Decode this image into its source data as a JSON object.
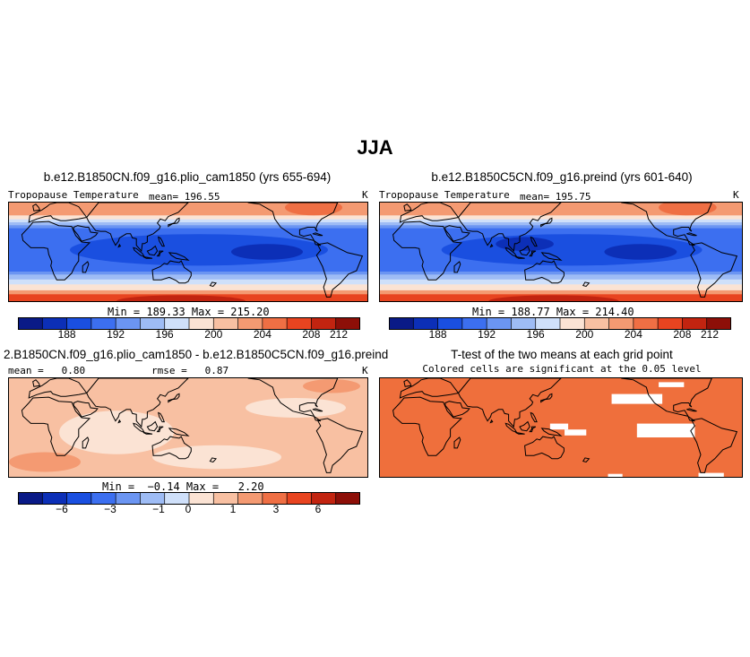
{
  "figure": {
    "title": "JJA"
  },
  "panels": {
    "p1": {
      "title": "b.e12.B1850CN.f09_g16.plio_cam1850 (yrs 655-694)",
      "variable": "Tropopause Temperature",
      "mean_label": "mean= 196.55",
      "units": "K",
      "minmax": "Min = 189.33 Max = 215.20"
    },
    "p2": {
      "title": "b.e12.B1850C5CN.f09_g16.preind (yrs 601-640)",
      "variable": "Tropopause Temperature",
      "mean_label": "mean= 195.75",
      "units": "K",
      "minmax": "Min = 188.77 Max = 214.40"
    },
    "p3": {
      "title": "2.B1850CN.f09_g16.plio_cam1850 - b.e12.B1850C5CN.f09_g16.preind",
      "mean_label": "mean =   0.80",
      "rmse_label": "rmse =   0.87",
      "units": "K",
      "minmax": "Min =  −0.14 Max =   2.20"
    },
    "p4": {
      "title": "T-test of the two means at each grid point",
      "subtitle": "Colored cells are significant at the 0.05 level"
    }
  },
  "colors": {
    "abs_scale": [
      "#0a1a87",
      "#0c2fb7",
      "#1a4fe0",
      "#3c6ff0",
      "#6b95f2",
      "#9ebcf5",
      "#cfe0fa",
      "#fbe3d4",
      "#f8c0a2",
      "#f49a72",
      "#ef6f44",
      "#e84420",
      "#c22410",
      "#8d0f08"
    ],
    "diff_scale": [
      "#0a1a87",
      "#0c2fb7",
      "#1a4fe0",
      "#3c6ff0",
      "#6b95f2",
      "#9ebcf5",
      "#cfe0fa",
      "#fbe3d4",
      "#f8c0a2",
      "#f49a72",
      "#ef6f44",
      "#e84420",
      "#c22410",
      "#8d0f08"
    ],
    "significance": "#ef6f3c",
    "land_outline": "#000000"
  },
  "chart_data": [
    {
      "type": "heatmap",
      "title": "b.e12.B1850CN.f09_g16.plio_cam1850 (yrs 655-694)",
      "variable": "Tropopause Temperature",
      "units": "K",
      "mean": 196.55,
      "min": 189.33,
      "max": 215.2,
      "colorbar_ticks": [
        "188",
        "192",
        "196",
        "200",
        "204",
        "208",
        "212"
      ],
      "colorbar_levels": 14
    },
    {
      "type": "heatmap",
      "title": "b.e12.B1850C5CN.f09_g16.preind (yrs 601-640)",
      "variable": "Tropopause Temperature",
      "units": "K",
      "mean": 195.75,
      "min": 188.77,
      "max": 214.4,
      "colorbar_ticks": [
        "188",
        "192",
        "196",
        "200",
        "204",
        "208",
        "212"
      ],
      "colorbar_levels": 14
    },
    {
      "type": "heatmap",
      "title": "2.B1850CN.f09_g16.plio_cam1850 - b.e12.B1850C5CN.f09_g16.preind",
      "units": "K",
      "mean": 0.8,
      "rmse": 0.87,
      "min": -0.14,
      "max": 2.2,
      "colorbar_ticks": [
        "−6",
        "−3",
        "−1",
        "0",
        "1",
        "3",
        "6"
      ],
      "colorbar_levels": 14
    },
    {
      "type": "heatmap",
      "title": "T-test of the two means at each grid point",
      "subtitle": "Colored cells are significant at the 0.05 level",
      "significance_level": 0.05
    }
  ]
}
